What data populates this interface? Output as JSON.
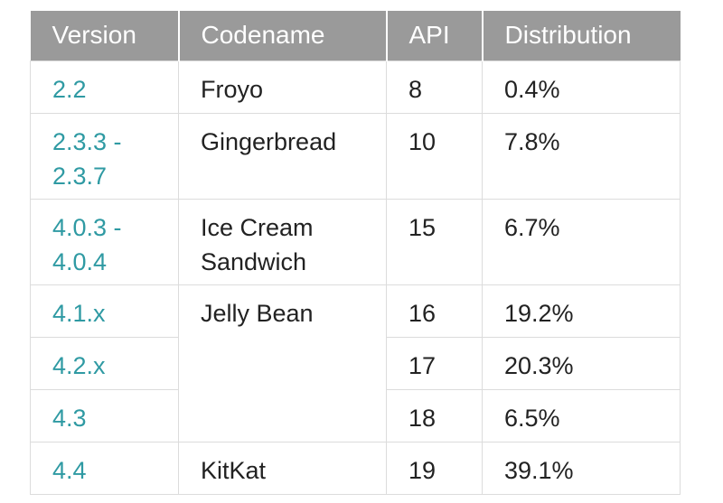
{
  "table": {
    "headers": [
      "Version",
      "Codename",
      "API",
      "Distribution"
    ],
    "rows": [
      {
        "version": "2.2",
        "codename": "Froyo",
        "api": 8,
        "distribution": "0.4%"
      },
      {
        "version": "2.3.3 - 2.3.7",
        "codename": "Gingerbread",
        "api": 10,
        "distribution": "7.8%"
      },
      {
        "version": "4.0.3 - 4.0.4",
        "codename": "Ice Cream Sandwich",
        "api": 15,
        "distribution": "6.7%"
      },
      {
        "version": "4.1.x",
        "codename": "Jelly Bean",
        "api": 16,
        "distribution": "19.2%"
      },
      {
        "version": "4.2.x",
        "api": 17,
        "distribution": "20.3%"
      },
      {
        "version": "4.3",
        "api": 18,
        "distribution": "6.5%"
      },
      {
        "version": "4.4",
        "codename": "KitKat",
        "api": 19,
        "distribution": "39.1%"
      }
    ]
  }
}
